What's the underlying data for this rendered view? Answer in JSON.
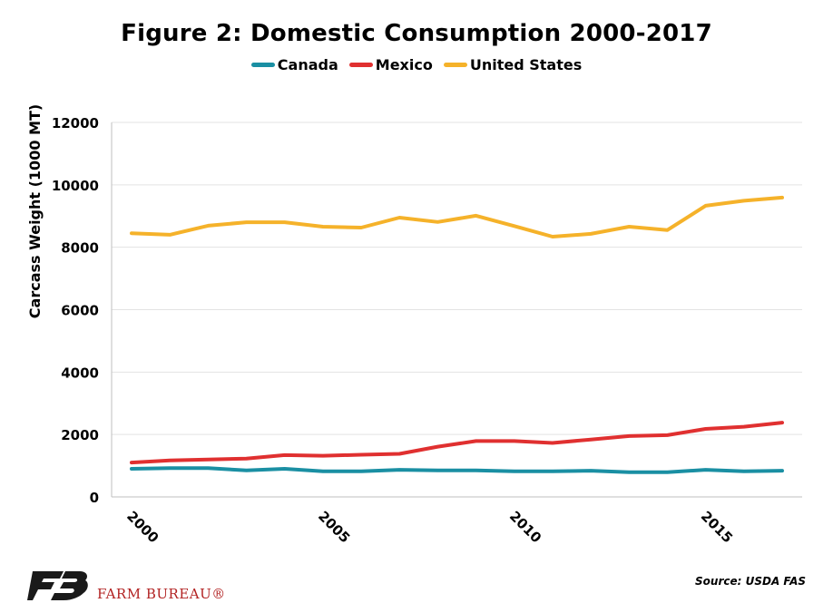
{
  "chart_data": {
    "type": "line",
    "title": "Figure 2: Domestic Consumption 2000-2017",
    "ylabel": "Carcass Weight (1000 MT)",
    "xlabel": "",
    "x": [
      2000,
      2001,
      2002,
      2003,
      2004,
      2005,
      2006,
      2007,
      2008,
      2009,
      2010,
      2011,
      2012,
      2013,
      2014,
      2015,
      2016,
      2017
    ],
    "xlim": [
      2000,
      2017
    ],
    "ylim": [
      0,
      12000
    ],
    "yticks": [
      0,
      2000,
      4000,
      6000,
      8000,
      10000,
      12000
    ],
    "xticks": [
      2000,
      2005,
      2010,
      2015
    ],
    "grid": "horizontal",
    "legend_position": "top",
    "series": [
      {
        "name": "Canada",
        "color": "#1a8fa3",
        "values": [
          900,
          920,
          920,
          850,
          900,
          820,
          820,
          870,
          850,
          850,
          820,
          820,
          840,
          790,
          790,
          870,
          820,
          840
        ]
      },
      {
        "name": "Mexico",
        "color": "#e03030",
        "values": [
          1100,
          1170,
          1200,
          1230,
          1340,
          1320,
          1350,
          1380,
          1610,
          1790,
          1790,
          1730,
          1840,
          1950,
          1980,
          2180,
          2250,
          2380
        ]
      },
      {
        "name": "United States",
        "color": "#f5b22a",
        "values": [
          8450,
          8400,
          8690,
          8800,
          8800,
          8660,
          8630,
          8950,
          8810,
          9010,
          8680,
          8340,
          8430,
          8660,
          8550,
          9330,
          9490,
          9590
        ]
      }
    ]
  },
  "footer": {
    "source": "Source: USDA FAS",
    "brand": "FARM BUREAU®"
  }
}
